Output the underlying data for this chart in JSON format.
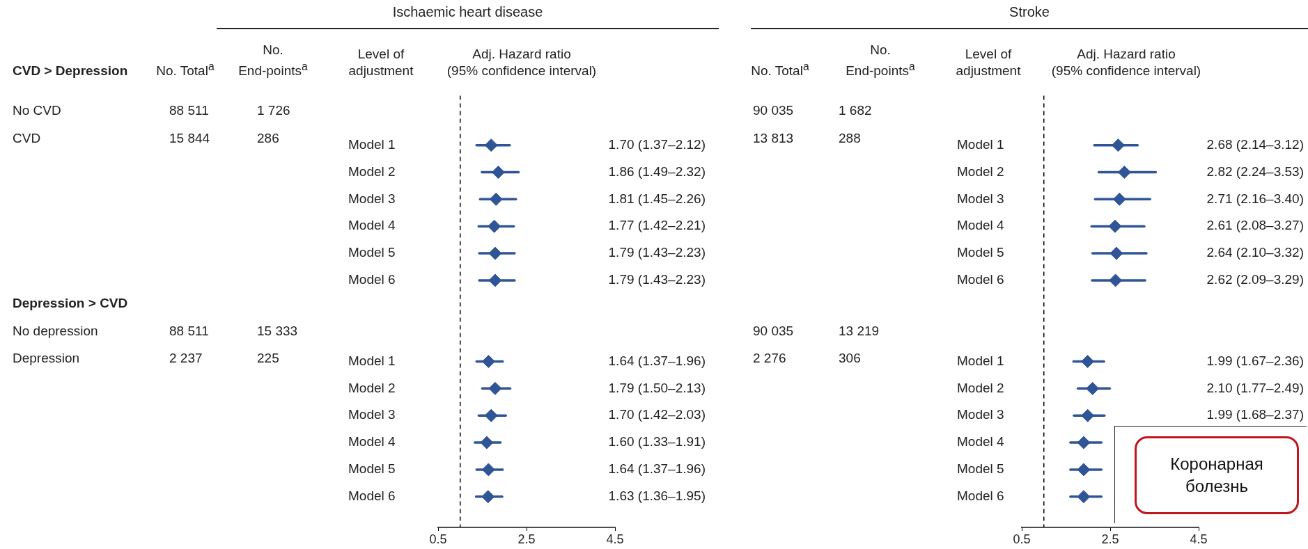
{
  "chart_data": [
    {
      "type": "scatter",
      "orientation": "horizontal",
      "title": "Ischaemic heart disease",
      "xlabel": "Adj. Hazard ratio\n(95% confidence interval)",
      "ylabel": "Level of\nadjustment",
      "marker": "diamond",
      "categories": [
        null,
        "Model 1",
        "Model 2",
        "Model 3",
        "Model 4",
        "Model 5",
        "Model 6",
        null,
        null,
        "Model 1",
        "Model 2",
        "Model 3",
        "Model 4",
        "Model 5",
        "Model 6"
      ],
      "series": [
        {
          "color": "#2f5597",
          "values": [
            null,
            1.7,
            1.86,
            1.81,
            1.77,
            1.79,
            1.79,
            null,
            null,
            1.64,
            1.79,
            1.7,
            1.6,
            1.64,
            1.63
          ],
          "errors": [
            null,
            [
              1.37,
              2.12
            ],
            [
              1.49,
              2.32
            ],
            [
              1.45,
              2.26
            ],
            [
              1.42,
              2.21
            ],
            [
              1.43,
              2.23
            ],
            [
              1.43,
              2.23
            ],
            null,
            null,
            [
              1.37,
              1.96
            ],
            [
              1.5,
              2.13
            ],
            [
              1.42,
              2.03
            ],
            [
              1.33,
              1.91
            ],
            [
              1.37,
              1.96
            ],
            [
              1.36,
              1.95
            ]
          ],
          "value_labels": [
            null,
            "1.70 (1.37–2.12)",
            "1.86 (1.49–2.32)",
            "1.81 (1.45–2.26)",
            "1.77 (1.42–2.21)",
            "1.79 (1.43–2.23)",
            "1.79 (1.43–2.23)",
            null,
            null,
            "1.64 (1.37–1.96)",
            "1.79 (1.50–2.13)",
            "1.70 (1.42–2.03)",
            "1.60 (1.33–1.91)",
            "1.64 (1.37–1.96)",
            "1.63 (1.36–1.95)"
          ]
        }
      ],
      "xlim": [
        0.5,
        4.5
      ],
      "xticks": [
        0.5,
        2.5,
        4.5
      ],
      "ref_lines": [
        {
          "axis": "x",
          "value": 1,
          "line_style": "dashed",
          "color": "#000000"
        }
      ],
      "annotations": [
        "CVD > Depression",
        "No. Total$^{a}$",
        "No.\nEnd-points$^{a}$",
        "No CVD",
        "88 511",
        "1 726",
        "CVD",
        "15 844",
        "286",
        "Depression > CVD",
        "No depression",
        "88 511",
        "15 333",
        "Depression",
        "2 237",
        "225"
      ]
    },
    {
      "type": "scatter",
      "orientation": "horizontal",
      "title": "Stroke",
      "xlabel": "Adj. Hazard ratio\n(95% confidence interval)",
      "ylabel": "Level of\nadjustment",
      "marker": "diamond",
      "categories": [
        null,
        "Model 1",
        "Model 2",
        "Model 3",
        "Model 4",
        "Model 5",
        "Model 6",
        null,
        null,
        "Model 1",
        "Model 2",
        "Model 3",
        "Model 4",
        "Model 5",
        "Model 6"
      ],
      "series": [
        {
          "color": "#2f5597",
          "values": [
            null,
            2.68,
            2.82,
            2.71,
            2.61,
            2.64,
            2.62,
            null,
            null,
            1.99,
            2.1,
            1.99,
            1.9,
            1.9,
            1.9
          ],
          "errors": [
            null,
            [
              2.14,
              3.12
            ],
            [
              2.24,
              3.53
            ],
            [
              2.16,
              3.4
            ],
            [
              2.08,
              3.27
            ],
            [
              2.1,
              3.32
            ],
            [
              2.09,
              3.29
            ],
            null,
            null,
            [
              1.67,
              2.36
            ],
            [
              1.77,
              2.49
            ],
            [
              1.68,
              2.37
            ],
            [
              1.6,
              2.3
            ],
            [
              1.6,
              2.3
            ],
            [
              1.6,
              2.3
            ]
          ],
          "value_labels": [
            null,
            "2.68 (2.14–3.12)",
            "2.82 (2.24–3.53)",
            "2.71 (2.16–3.40)",
            "2.61 (2.08–3.27)",
            "2.64 (2.10–3.32)",
            "2.62 (2.09–3.29)",
            null,
            null,
            "1.99 (1.67–2.36)",
            "2.10 (1.77–2.49)",
            "1.99 (1.68–2.37)",
            null,
            null,
            null
          ]
        }
      ],
      "xlim": [
        0.5,
        4.5
      ],
      "xticks": [
        0.5,
        2.5,
        4.5
      ],
      "ref_lines": [
        {
          "axis": "x",
          "value": 1,
          "line_style": "dashed",
          "color": "#000000"
        }
      ],
      "annotations": [
        "No. Total$^{a}$",
        "No.\nEnd-points$^{a}$",
        "90 035",
        "1 682",
        "13 813",
        "288",
        "90 035",
        "13 219",
        "2 276",
        "306",
        "Коронарная\nболезнь"
      ]
    }
  ]
}
